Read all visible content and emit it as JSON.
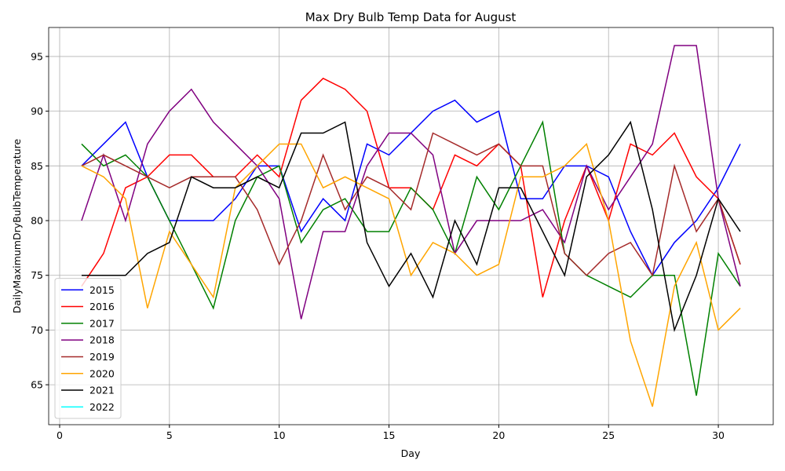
{
  "chart_data": {
    "type": "line",
    "title": "Max Dry Bulb Temp Data for August",
    "x_label": "Day",
    "y_label": "DailyMaximumDryBulbTemperature",
    "x": [
      1,
      2,
      3,
      4,
      5,
      6,
      7,
      8,
      9,
      10,
      11,
      12,
      13,
      14,
      15,
      16,
      17,
      18,
      19,
      20,
      21,
      22,
      23,
      24,
      25,
      26,
      27,
      28,
      29,
      30,
      31
    ],
    "series": [
      {
        "name": "2015",
        "color": "blue",
        "values": [
          85,
          87,
          89,
          84,
          80,
          80,
          80,
          82,
          85,
          85,
          79,
          82,
          80,
          87,
          86,
          88,
          90,
          91,
          89,
          90,
          82,
          82,
          85,
          85,
          84,
          79,
          75,
          78,
          80,
          83,
          87
        ]
      },
      {
        "name": "2016",
        "color": "red",
        "values": [
          74,
          77,
          83,
          84,
          86,
          86,
          84,
          84,
          86,
          84,
          91,
          93,
          92,
          90,
          83,
          83,
          81,
          86,
          85,
          87,
          85,
          73,
          80,
          85,
          80,
          87,
          86,
          88,
          84,
          82,
          76
        ]
      },
      {
        "name": "2017",
        "color": "green",
        "values": [
          87,
          85,
          86,
          84,
          80,
          76,
          72,
          80,
          84,
          85,
          78,
          81,
          82,
          79,
          79,
          83,
          81,
          77,
          84,
          81,
          85,
          89,
          77,
          75,
          74,
          73,
          75,
          75,
          64,
          77,
          74
        ]
      },
      {
        "name": "2018",
        "color": "purple",
        "values": [
          80,
          86,
          80,
          87,
          90,
          92,
          89,
          87,
          85,
          82,
          71,
          79,
          79,
          85,
          88,
          88,
          86,
          77,
          80,
          80,
          80,
          81,
          78,
          85,
          81,
          84,
          87,
          96,
          96,
          82,
          74
        ]
      },
      {
        "name": "2019",
        "color": "brown",
        "values": [
          85,
          86,
          85,
          84,
          83,
          84,
          84,
          84,
          81,
          76,
          80,
          86,
          81,
          84,
          83,
          81,
          88,
          87,
          86,
          87,
          85,
          85,
          77,
          75,
          77,
          78,
          75,
          85,
          79,
          82,
          76
        ]
      },
      {
        "name": "2020",
        "color": "orange",
        "values": [
          85,
          84,
          82,
          72,
          79,
          76,
          73,
          83,
          85,
          87,
          87,
          83,
          84,
          83,
          82,
          75,
          78,
          77,
          75,
          76,
          84,
          84,
          85,
          87,
          80,
          69,
          63,
          74,
          78,
          70,
          72
        ]
      },
      {
        "name": "2021",
        "color": "black",
        "values": [
          75,
          75,
          75,
          77,
          78,
          84,
          83,
          83,
          84,
          83,
          88,
          88,
          89,
          78,
          74,
          77,
          73,
          80,
          76,
          83,
          83,
          79,
          75,
          84,
          86,
          89,
          81,
          70,
          75,
          82,
          79
        ]
      },
      {
        "name": "2022",
        "color": "cyan",
        "values": [
          null,
          null,
          null,
          null,
          null,
          null,
          null,
          null,
          null,
          null,
          null,
          null,
          null,
          null,
          null,
          null,
          null,
          null,
          null,
          null,
          null,
          null,
          null,
          null,
          null,
          null,
          null,
          null,
          null,
          null,
          null
        ]
      }
    ],
    "xlim": [
      -0.5,
      32.5
    ],
    "ylim": [
      61.35,
      97.65
    ],
    "xticks": [
      0,
      5,
      10,
      15,
      20,
      25,
      30
    ],
    "yticks": [
      65,
      70,
      75,
      80,
      85,
      90,
      95
    ],
    "grid": true,
    "legend": "lower left"
  }
}
